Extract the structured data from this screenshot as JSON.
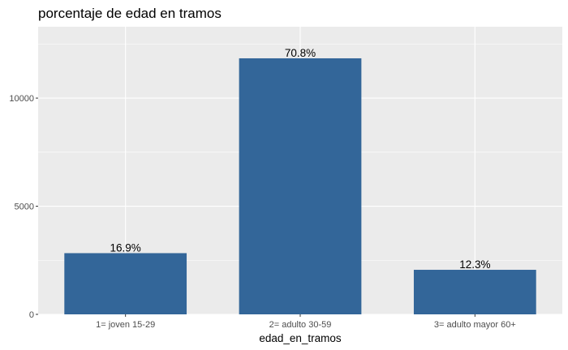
{
  "chart_data": {
    "type": "bar",
    "title": "porcentaje de edad en tramos",
    "xlabel": "edad_en_tramos",
    "ylabel": "",
    "categories": [
      "1= joven 15-29",
      "2= adulto 30-59",
      "3= adulto mayor 60+"
    ],
    "values": [
      2830,
      11840,
      2060
    ],
    "data_labels": [
      "16.9%",
      "70.8%",
      "12.3%"
    ],
    "ylim": [
      0,
      13300
    ],
    "yticks": [
      0,
      5000,
      10000
    ],
    "ytick_labels": [
      "0",
      "5000",
      "10000"
    ],
    "grid": true,
    "legend": "none",
    "colors": {
      "bar": "#336699",
      "panel": "#ebebeb",
      "grid_major": "#ffffff",
      "tick_text": "#4d4d4d",
      "tick_mark": "#333333"
    }
  }
}
